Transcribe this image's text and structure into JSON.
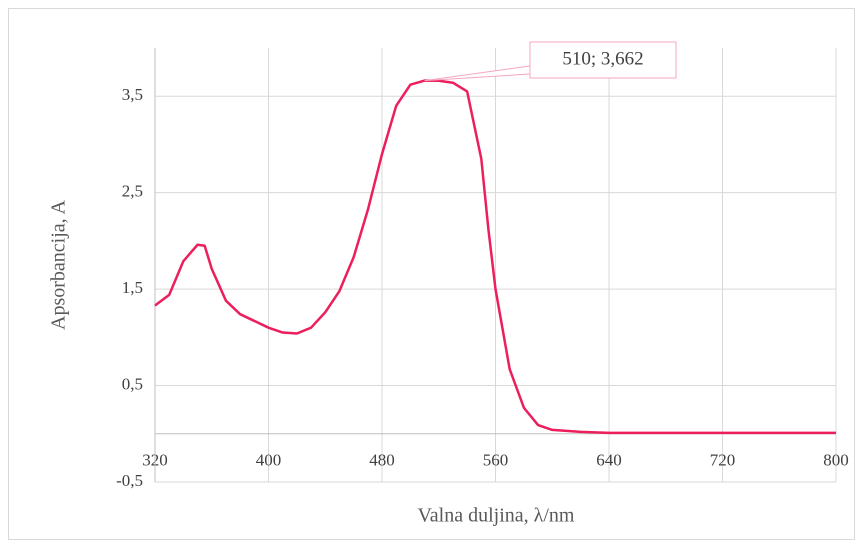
{
  "chart_data": {
    "type": "line",
    "x_label": "Valna duljina, λ/nm",
    "y_label": "Apsorbancija, A",
    "x": [
      320,
      330,
      340,
      350,
      355,
      360,
      370,
      380,
      390,
      400,
      410,
      420,
      430,
      440,
      450,
      460,
      470,
      480,
      490,
      500,
      510,
      520,
      530,
      540,
      550,
      555,
      560,
      570,
      580,
      590,
      600,
      620,
      640,
      680,
      720,
      760,
      800
    ],
    "series": [
      {
        "name": "Absorbancija",
        "color": "#ec1f5c",
        "values": [
          1.33,
          1.44,
          1.79,
          1.96,
          1.95,
          1.71,
          1.38,
          1.24,
          1.17,
          1.1,
          1.05,
          1.04,
          1.1,
          1.26,
          1.48,
          1.83,
          2.32,
          2.9,
          3.4,
          3.62,
          3.662,
          3.66,
          3.64,
          3.55,
          2.85,
          2.12,
          1.5,
          0.67,
          0.27,
          0.09,
          0.04,
          0.02,
          0.01,
          0.01,
          0.01,
          0.01,
          0.01
        ]
      }
    ],
    "xlim": [
      320,
      800
    ],
    "xticks": [
      320,
      400,
      480,
      560,
      640,
      720,
      800
    ],
    "ylim": [
      -0.5,
      4
    ],
    "yticks": [
      {
        "value": -0.5,
        "label": "-0,5"
      },
      {
        "value": 0.5,
        "label": "0,5"
      },
      {
        "value": 1.5,
        "label": "1,5"
      },
      {
        "value": 2.5,
        "label": "2,5"
      },
      {
        "value": 3.5,
        "label": "3,5"
      }
    ],
    "grid": true,
    "annotation": {
      "text": "510; 3,662",
      "x": 510,
      "y": 3.662
    }
  }
}
